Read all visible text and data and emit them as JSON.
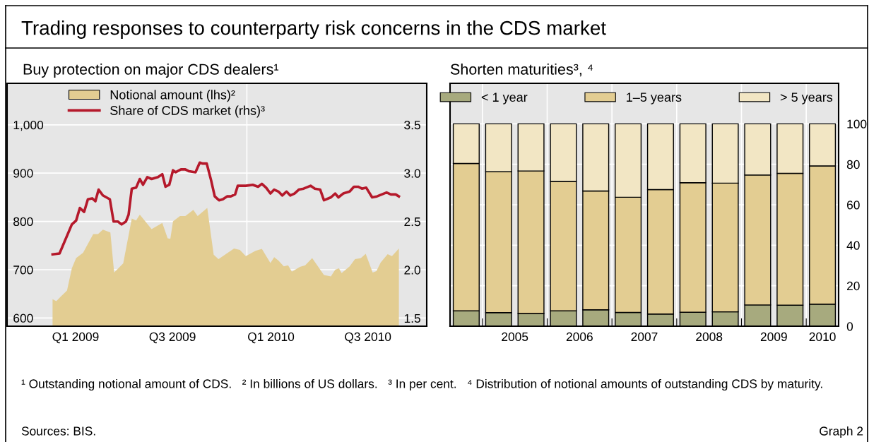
{
  "chart_data": [
    {
      "type": "line",
      "title": "Trading responses to counterparty risk concerns in the CDS market",
      "subtitle": "Buy protection on major CDS dealers¹",
      "xlim": [
        "2008-10-10",
        "2010-12-03"
      ],
      "xticks": [
        {
          "value": "2009-02-01",
          "label": null
        },
        {
          "value": "2009-02-15",
          "label": "Q1 2009"
        },
        {
          "value": "2009-03-01",
          "label": null
        },
        {
          "value": "2009-04-01",
          "label": null
        },
        {
          "value": "2009-05-01",
          "label": null
        },
        {
          "value": "2009-06-01",
          "label": null
        },
        {
          "value": "2009-07-01",
          "label": null
        },
        {
          "value": "2009-08-01",
          "label": null
        },
        {
          "value": "2009-08-15",
          "label": "Q3 2009"
        },
        {
          "value": "2009-09-01",
          "label": null
        },
        {
          "value": "2009-10-01",
          "label": null
        },
        {
          "value": "2009-11-01",
          "label": null
        },
        {
          "value": "2009-12-01",
          "label": null
        },
        {
          "value": "2010-01-01",
          "label": null
        },
        {
          "value": "2010-02-01",
          "label": null
        },
        {
          "value": "2010-02-15",
          "label": "Q1 2010"
        },
        {
          "value": "2010-03-01",
          "label": null
        },
        {
          "value": "2010-04-01",
          "label": null
        },
        {
          "value": "2010-05-01",
          "label": null
        },
        {
          "value": "2010-06-01",
          "label": null
        },
        {
          "value": "2010-07-01",
          "label": null
        },
        {
          "value": "2010-08-01",
          "label": null
        },
        {
          "value": "2010-08-15",
          "label": "Q3 2010"
        },
        {
          "value": "2010-09-01",
          "label": null
        },
        {
          "value": "2010-10-01",
          "label": null
        }
      ],
      "ylim": [
        583,
        1086
      ],
      "yticks": [
        600,
        700,
        800,
        900,
        {
          "value": 1000,
          "label": "1,000"
        }
      ],
      "y2lim": [
        1.417,
        3.93
      ],
      "y2ticks": [
        1.5,
        {
          "value": 2,
          "label": "2.0"
        },
        2.5,
        {
          "value": 3,
          "label": "3.0"
        },
        3.5
      ],
      "grid": "y",
      "legend": "top left",
      "ref_lines": [
        {
          "axis": "x",
          "value": "2010-01-01",
          "color": "#ffffff"
        }
      ],
      "series": [
        {
          "name": "Notional amount (lhs)²",
          "type": "area",
          "axis": "y",
          "color": "#e3cd92",
          "x": [
            "2009-01-03",
            "2009-01-10",
            "2009-01-18",
            "2009-01-30",
            "2009-02-08",
            "2009-02-16",
            "2009-03-01",
            "2009-03-20",
            "2009-03-29",
            "2009-04-07",
            "2009-04-21",
            "2009-04-28",
            "2009-05-15",
            "2009-05-31",
            "2009-06-08",
            "2009-06-15",
            "2009-07-07",
            "2009-07-27",
            "2009-08-06",
            "2009-08-11",
            "2009-08-16",
            "2009-08-29",
            "2009-09-08",
            "2009-09-23",
            "2009-10-01",
            "2009-10-19",
            "2009-10-31",
            "2009-11-09",
            "2009-12-08",
            "2009-12-19",
            "2009-12-30",
            "2010-01-17",
            "2010-01-29",
            "2010-02-14",
            "2010-02-21",
            "2010-03-01",
            "2010-03-11",
            "2010-03-19",
            "2010-03-26",
            "2010-04-10",
            "2010-04-20",
            "2010-05-03",
            "2010-05-25",
            "2010-06-07",
            "2010-06-15",
            "2010-06-22",
            "2010-06-27",
            "2010-07-12",
            "2010-07-22",
            "2010-08-02",
            "2010-08-11",
            "2010-08-24",
            "2010-08-31",
            "2010-09-08",
            "2010-09-21",
            "2010-09-29",
            "2010-10-12"
          ],
          "values": [
            639,
            635,
            644,
            657,
            703,
            724,
            735,
            774,
            774,
            783,
            777,
            694,
            713,
            806,
            802,
            814,
            784,
            797,
            765,
            764,
            800,
            811,
            811,
            824,
            811,
            828,
            731,
            722,
            744,
            741,
            728,
            739,
            743,
            714,
            726,
            719,
            707,
            709,
            696,
            706,
            709,
            724,
            689,
            686,
            700,
            703,
            693,
            707,
            722,
            724,
            733,
            694,
            697,
            715,
            732,
            728,
            744
          ]
        },
        {
          "name": "Share of CDS market (rhs)³",
          "type": "line",
          "axis": "y2",
          "color": "#b5192b",
          "x": [
            "2009-01-03",
            "2009-01-16",
            "2009-02-08",
            "2009-02-16",
            "2009-02-23",
            "2009-03-03",
            "2009-03-10",
            "2009-03-18",
            "2009-03-24",
            "2009-03-30",
            "2009-04-07",
            "2009-04-20",
            "2009-04-27",
            "2009-05-05",
            "2009-05-12",
            "2009-05-20",
            "2009-05-25",
            "2009-05-31",
            "2009-06-08",
            "2009-06-15",
            "2009-06-21",
            "2009-06-29",
            "2009-07-07",
            "2009-07-19",
            "2009-07-27",
            "2009-08-02",
            "2009-08-09",
            "2009-08-16",
            "2009-08-21",
            "2009-08-31",
            "2009-09-08",
            "2009-09-15",
            "2009-09-27",
            "2009-10-05",
            "2009-10-10",
            "2009-10-18",
            "2009-10-26",
            "2009-11-02",
            "2009-11-10",
            "2009-11-17",
            "2009-11-25",
            "2009-12-02",
            "2009-12-10",
            "2009-12-15",
            "2009-12-30",
            "2010-01-12",
            "2010-01-22",
            "2010-01-29",
            "2010-02-06",
            "2010-02-14",
            "2010-02-21",
            "2010-03-01",
            "2010-03-08",
            "2010-03-16",
            "2010-03-23",
            "2010-03-31",
            "2010-04-08",
            "2010-04-17",
            "2010-04-30",
            "2010-05-08",
            "2010-05-18",
            "2010-05-25",
            "2010-06-07",
            "2010-06-15",
            "2010-06-21",
            "2010-06-30",
            "2010-07-12",
            "2010-07-20",
            "2010-07-28",
            "2010-08-04",
            "2010-08-12",
            "2010-08-23",
            "2010-09-01",
            "2010-09-19",
            "2010-09-27",
            "2010-10-06",
            "2010-10-12"
          ],
          "values": [
            2.16,
            2.17,
            2.47,
            2.51,
            2.64,
            2.6,
            2.73,
            2.74,
            2.71,
            2.83,
            2.77,
            2.73,
            2.5,
            2.5,
            2.47,
            2.5,
            2.57,
            2.84,
            2.85,
            2.94,
            2.88,
            2.96,
            2.94,
            2.96,
            2.99,
            2.86,
            2.88,
            3.03,
            3.01,
            3.04,
            3.04,
            3.02,
            3.01,
            3.11,
            3.1,
            3.1,
            2.93,
            2.76,
            2.72,
            2.73,
            2.76,
            2.76,
            2.78,
            2.87,
            2.87,
            2.88,
            2.86,
            2.89,
            2.85,
            2.79,
            2.83,
            2.81,
            2.77,
            2.81,
            2.77,
            2.79,
            2.83,
            2.84,
            2.87,
            2.84,
            2.83,
            2.72,
            2.75,
            2.79,
            2.75,
            2.79,
            2.81,
            2.86,
            2.86,
            2.84,
            2.85,
            2.75,
            2.76,
            2.8,
            2.78,
            2.78,
            2.76
          ]
        }
      ]
    },
    {
      "type": "bar",
      "subtitle": "Shorten maturities³, ⁴",
      "stacked": true,
      "x": [
        2004.75,
        2005.25,
        2005.75,
        2006.25,
        2006.75,
        2007.25,
        2007.75,
        2008.25,
        2008.75,
        2009.25,
        2009.75,
        2010.25
      ],
      "xlim": [
        2004.5,
        2010.5
      ],
      "xticks": [
        {
          "value": 2005,
          "label": null
        },
        {
          "value": 2005.5,
          "label": "2005"
        },
        {
          "value": 2006,
          "label": null
        },
        {
          "value": 2006.5,
          "label": "2006"
        },
        {
          "value": 2007,
          "label": null
        },
        {
          "value": 2007.5,
          "label": "2007"
        },
        {
          "value": 2008,
          "label": null
        },
        {
          "value": 2008.5,
          "label": "2008"
        },
        {
          "value": 2009,
          "label": null
        },
        {
          "value": 2009.5,
          "label": "2009"
        },
        {
          "value": 2010,
          "label": null
        },
        {
          "value": 2010.25,
          "label": "2010"
        }
      ],
      "ylim": [
        0,
        120
      ],
      "yticks": [
        0,
        20,
        40,
        60,
        80,
        100
      ],
      "grid": true,
      "legend": "top",
      "series": [
        {
          "name": "< 1 year",
          "color": "#a7aa7e",
          "values": [
            7.6,
            6.7,
            6.3,
            7.6,
            8.1,
            6.8,
            6.0,
            6.9,
            7.1,
            10.5,
            10.4,
            10.9
          ]
        },
        {
          "name": "1–5 years",
          "color": "#e3cd92",
          "values": [
            72.8,
            69.6,
            70.4,
            63.9,
            58.7,
            56.9,
            61.5,
            64.0,
            63.6,
            64.2,
            65.1,
            68.3
          ]
        },
        {
          "name": "> 5 years",
          "color": "#f2e6c4",
          "values": [
            19.6,
            23.7,
            23.3,
            28.5,
            33.2,
            36.3,
            32.5,
            29.1,
            29.3,
            25.3,
            24.5,
            20.8
          ]
        }
      ],
      "annotations": [
        "¹ Outstanding notional amount of CDS.   ² In billions of US dollars.   ³ In per cent.   ⁴ Distribution of notional amounts of outstanding CDS by maturity.",
        "Sources: BIS.",
        "Graph 2"
      ]
    }
  ]
}
